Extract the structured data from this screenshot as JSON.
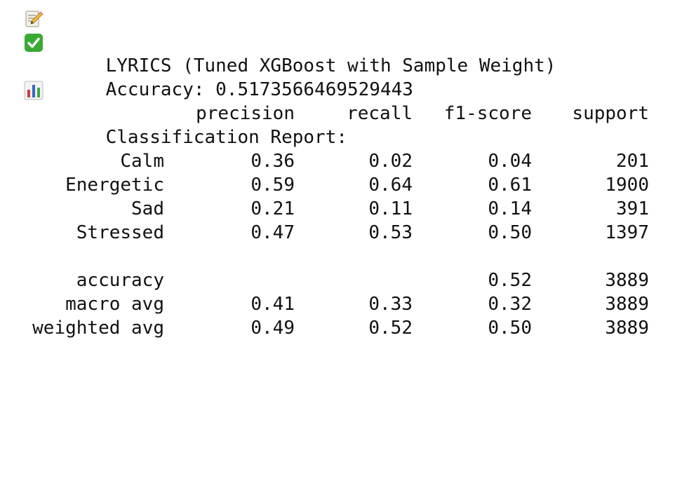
{
  "title": {
    "icon": "memo-pencil-icon",
    "text": "LYRICS (Tuned XGBoost with Sample Weight)"
  },
  "accuracy": {
    "icon": "green-check-icon",
    "text": "Accuracy: 0.5173566469529443"
  },
  "report": {
    "icon": "bar-chart-icon",
    "heading": "Classification Report:",
    "columns": [
      "precision",
      "recall",
      "f1-score",
      "support"
    ],
    "rows": [
      {
        "label": "Calm",
        "precision": "0.36",
        "recall": "0.02",
        "f1": "0.04",
        "support": "201"
      },
      {
        "label": "Energetic",
        "precision": "0.59",
        "recall": "0.64",
        "f1": "0.61",
        "support": "1900"
      },
      {
        "label": "Sad",
        "precision": "0.21",
        "recall": "0.11",
        "f1": "0.14",
        "support": "391"
      },
      {
        "label": "Stressed",
        "precision": "0.47",
        "recall": "0.53",
        "f1": "0.50",
        "support": "1397"
      }
    ],
    "summary": [
      {
        "label": "accuracy",
        "precision": "",
        "recall": "",
        "f1": "0.52",
        "support": "3889"
      },
      {
        "label": "macro avg",
        "precision": "0.41",
        "recall": "0.33",
        "f1": "0.32",
        "support": "3889"
      },
      {
        "label": "weighted avg",
        "precision": "0.49",
        "recall": "0.52",
        "f1": "0.50",
        "support": "3889"
      }
    ]
  },
  "colors": {
    "text": "#111111",
    "check_green": "#3aa935",
    "chart_red": "#d63a3a",
    "chart_blue": "#3766c9",
    "chart_green": "#45a83b"
  }
}
